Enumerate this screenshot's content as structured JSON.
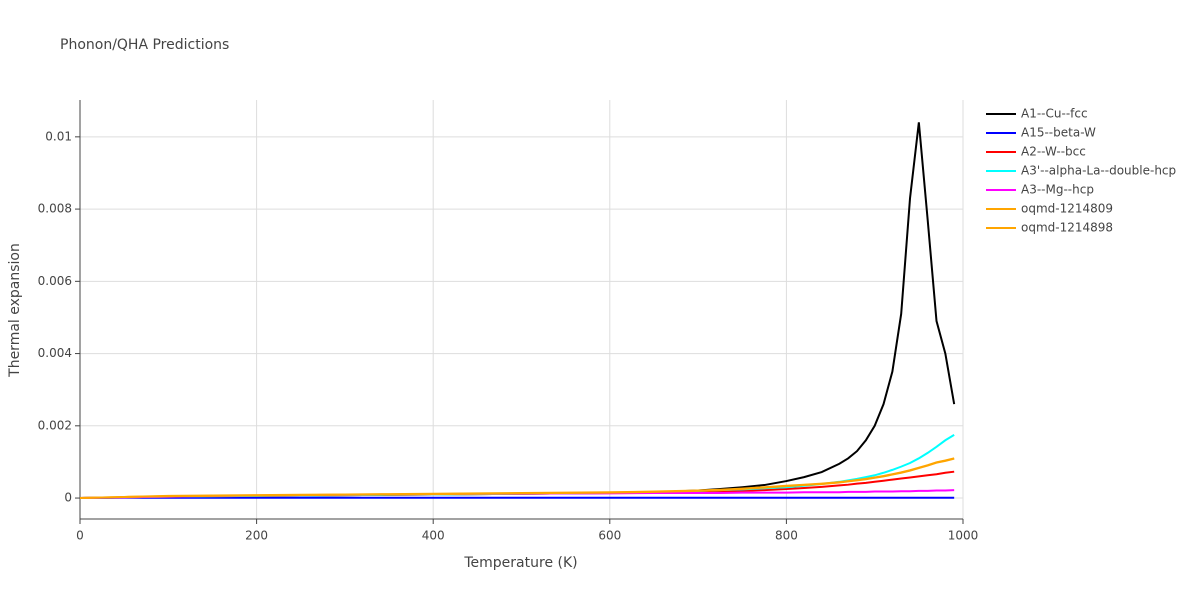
{
  "chart_data": {
    "type": "line",
    "title": "Phonon/QHA Predictions",
    "x_label": "Temperature (K)",
    "y_label": "Thermal expansion",
    "x": [
      0,
      50,
      100,
      150,
      200,
      250,
      300,
      350,
      400,
      450,
      500,
      550,
      600,
      650,
      700,
      725,
      750,
      775,
      800,
      820,
      840,
      860,
      870,
      880,
      890,
      900,
      910,
      920,
      930,
      940,
      950,
      960,
      970,
      980,
      990
    ],
    "series": [
      {
        "name": "A1--Cu--fcc",
        "color": "#000000",
        "values": [
          0,
          2e-05,
          4e-05,
          5e-05,
          6e-05,
          7e-05,
          8e-05,
          9e-05,
          0.0001,
          0.00011,
          0.00012,
          0.00013,
          0.00014,
          0.00016,
          0.00021,
          0.00025,
          0.0003,
          0.00036,
          0.00047,
          0.00058,
          0.00072,
          0.00095,
          0.0011,
          0.0013,
          0.0016,
          0.002,
          0.0026,
          0.0035,
          0.0051,
          0.0083,
          0.0104,
          0.0077,
          0.0049,
          0.004,
          0.0026
        ]
      },
      {
        "name": "A15--beta-W",
        "color": "#0000ff",
        "values": [
          0,
          1e-05,
          1e-05,
          1e-05,
          1e-05,
          1e-05,
          1e-05,
          1e-05,
          1e-05,
          1e-05,
          1e-05,
          1e-05,
          1e-05,
          1e-05,
          1e-05,
          1e-05,
          1e-05,
          1e-05,
          1e-05,
          1e-05,
          1e-05,
          1e-05,
          1e-05,
          1e-05,
          1e-05,
          1e-05,
          1e-05,
          1e-05,
          1e-05,
          1e-05,
          1e-05,
          1e-05,
          1e-05,
          1e-05,
          1e-05
        ]
      },
      {
        "name": "A2--W--bcc",
        "color": "#ff0000",
        "values": [
          0,
          2e-05,
          4e-05,
          5e-05,
          6e-05,
          7e-05,
          8e-05,
          9e-05,
          0.0001,
          0.00011,
          0.00012,
          0.00013,
          0.00014,
          0.00015,
          0.00017,
          0.00019,
          0.0002,
          0.00022,
          0.00025,
          0.00028,
          0.00031,
          0.00035,
          0.00037,
          0.0004,
          0.00042,
          0.00045,
          0.00048,
          0.00051,
          0.00054,
          0.00057,
          0.0006,
          0.00063,
          0.00066,
          0.0007,
          0.00073
        ]
      },
      {
        "name": "A3'--alpha-La--double-hcp",
        "color": "#00ffff",
        "values": [
          0,
          2e-05,
          4e-05,
          5e-05,
          6e-05,
          7e-05,
          8e-05,
          9e-05,
          0.0001,
          0.00011,
          0.00012,
          0.00013,
          0.00014,
          0.00016,
          0.0002,
          0.00022,
          0.00024,
          0.00027,
          0.0003,
          0.00034,
          0.00039,
          0.00045,
          0.00049,
          0.00053,
          0.00058,
          0.00063,
          0.0007,
          0.00078,
          0.00087,
          0.00097,
          0.0011,
          0.00125,
          0.00142,
          0.0016,
          0.00175
        ]
      },
      {
        "name": "A3--Mg--hcp",
        "color": "#ff00ff",
        "values": [
          0,
          2e-05,
          4e-05,
          6e-05,
          7e-05,
          8e-05,
          9e-05,
          0.0001,
          0.00011,
          0.00012,
          0.00012,
          0.00013,
          0.00013,
          0.00014,
          0.00014,
          0.00014,
          0.00015,
          0.00015,
          0.00015,
          0.00016,
          0.00016,
          0.00016,
          0.00017,
          0.00017,
          0.00017,
          0.00018,
          0.00018,
          0.00018,
          0.00019,
          0.00019,
          0.0002,
          0.0002,
          0.00021,
          0.00021,
          0.00022
        ]
      },
      {
        "name": "oqmd-1214809",
        "color": "#ffa500",
        "values": [
          0,
          3e-05,
          5e-05,
          6e-05,
          7e-05,
          8e-05,
          9e-05,
          0.0001,
          0.00011,
          0.00012,
          0.00013,
          0.00014,
          0.00015,
          0.00017,
          0.0002,
          0.00022,
          0.00025,
          0.00029,
          0.00033,
          0.00036,
          0.00039,
          0.00043,
          0.00046,
          0.00049,
          0.00052,
          0.00056,
          0.0006,
          0.00065,
          0.0007,
          0.00076,
          0.00083,
          0.0009,
          0.00098,
          0.00103,
          0.00109
        ]
      },
      {
        "name": "oqmd-1214898",
        "color": "#ffa500",
        "values": [
          0,
          3e-05,
          6e-05,
          7e-05,
          8e-05,
          9e-05,
          0.0001,
          0.00011,
          0.00012,
          0.00013,
          0.00014,
          0.00015,
          0.00016,
          0.00018,
          0.00021,
          0.00023,
          0.00026,
          0.0003,
          0.00034,
          0.00037,
          0.0004,
          0.00044,
          0.00047,
          0.0005,
          0.00053,
          0.00057,
          0.00061,
          0.00066,
          0.00071,
          0.00077,
          0.00084,
          0.00091,
          0.00099,
          0.00104,
          0.0011
        ]
      }
    ],
    "xlim": [
      0,
      1000
    ],
    "xticks": [
      0,
      200,
      400,
      600,
      800,
      1000
    ],
    "ylim": [
      -0.00058,
      0.01102
    ],
    "yticks": [
      0,
      0.002,
      0.004,
      0.006,
      0.008,
      0.01
    ],
    "grid": true
  }
}
